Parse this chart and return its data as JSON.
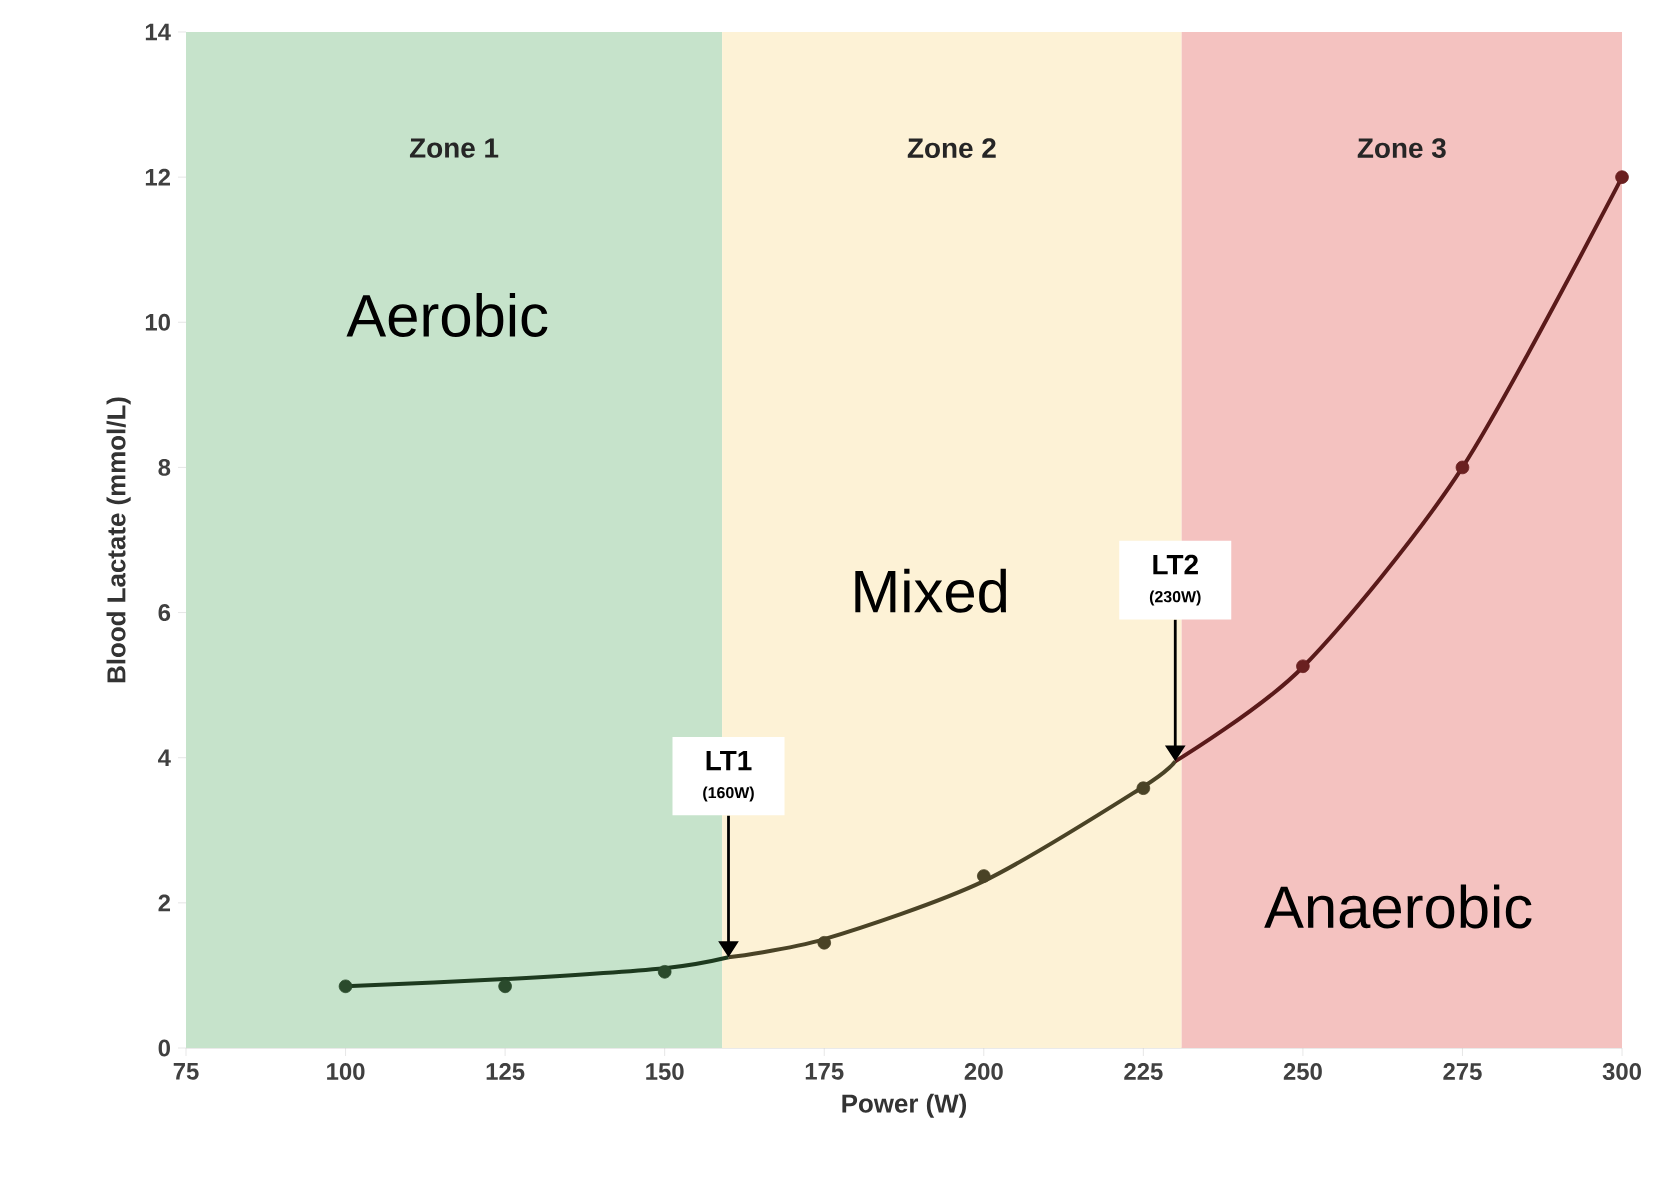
{
  "chart_data": {
    "type": "scatter",
    "xlabel": "Power (W)",
    "ylabel": "Blood Lactate (mmol/L)",
    "xlim": [
      75,
      300
    ],
    "xticks": [
      75,
      100,
      125,
      150,
      175,
      200,
      225,
      250,
      275,
      300
    ],
    "ylim": [
      0,
      14
    ],
    "yticks": [
      0,
      2,
      4,
      6,
      8,
      10,
      12,
      14
    ],
    "x": [
      100,
      125,
      150,
      175,
      200,
      225,
      250,
      275,
      300
    ],
    "series": [
      {
        "type": "line",
        "marker": "none",
        "color": "#1d3a1f",
        "x": [
          100,
          125,
          150,
          160
        ],
        "values": [
          0.85,
          0.95,
          1.1,
          1.25
        ]
      },
      {
        "type": "line",
        "marker": "none",
        "color": "#4a4326",
        "x": [
          160,
          175,
          200,
          225,
          230
        ],
        "values": [
          1.25,
          1.5,
          2.3,
          3.6,
          3.95
        ]
      },
      {
        "type": "line",
        "marker": "none",
        "color": "#5a1a1a",
        "x": [
          230,
          250,
          275,
          300
        ],
        "values": [
          3.95,
          5.25,
          8.0,
          12.0
        ]
      },
      {
        "marker": "circle",
        "colors": [
          "#2a4a2c",
          "#2a4a2c",
          "#2a4a2c",
          "#4a4326",
          "#4a4326",
          "#4a4326",
          "#6a2020",
          "#6a2020",
          "#6a2020"
        ],
        "values": [
          0.85,
          0.85,
          1.05,
          1.45,
          2.37,
          3.58,
          5.26,
          8.0,
          12.0
        ]
      }
    ],
    "bands": [
      {
        "axis": "x",
        "from": 75,
        "to": 159,
        "label": "Zone 1",
        "color": "#c6e3cb"
      },
      {
        "axis": "x",
        "from": 159,
        "to": 231,
        "label": "Zone 2",
        "color": "#fdf2d6"
      },
      {
        "axis": "x",
        "from": 231,
        "to": 300,
        "label": "Zone 3",
        "color": "#f4c2c0"
      }
    ],
    "annotations": [
      "Aerobic",
      "Mixed",
      "Anaerobic",
      "LT1",
      {
        "text": "(160W)",
        "x": 160,
        "y": 1.25
      },
      "LT2",
      {
        "text": "(230W)",
        "x": 230,
        "y": 3.95
      }
    ],
    "grid": false
  }
}
